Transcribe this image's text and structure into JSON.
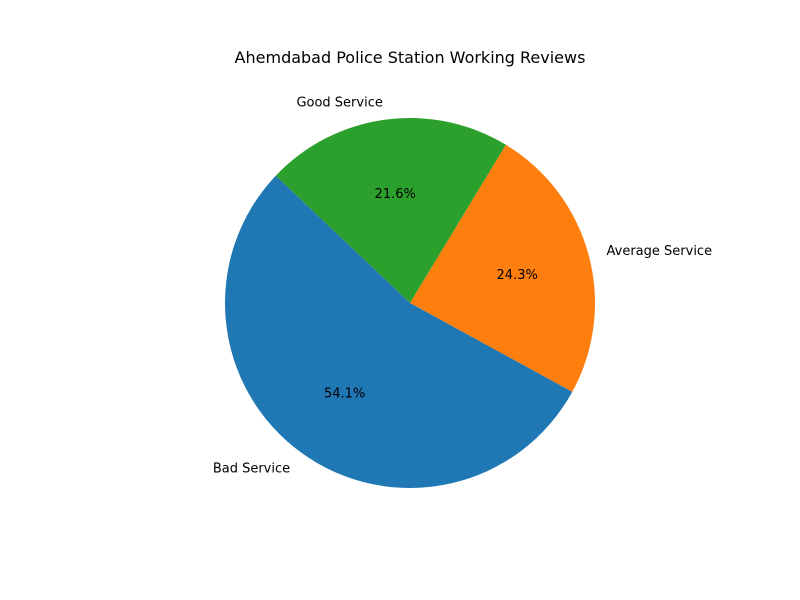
{
  "chart_data": {
    "type": "pie",
    "title": "Ahemdabad Police Station Working Reviews",
    "slices": [
      {
        "label": "Average Service",
        "value": 24.3,
        "pct_label": "24.3%",
        "color": "#ff7f0e"
      },
      {
        "label": "Good Service",
        "value": 21.6,
        "pct_label": "21.6%",
        "color": "#2ca02c"
      },
      {
        "label": "Bad Service",
        "value": 54.1,
        "pct_label": "54.1%",
        "color": "#1f77b4"
      }
    ],
    "start_angle_deg": -28.7,
    "direction": "counterclockwise",
    "legend": "none"
  }
}
